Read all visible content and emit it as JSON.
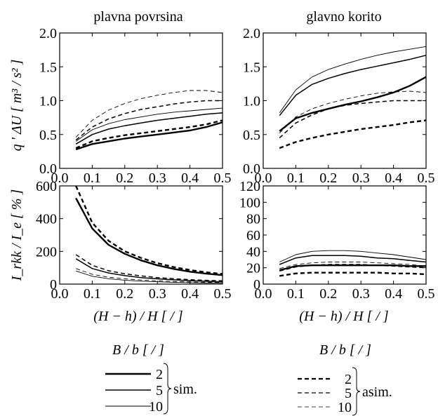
{
  "panel_titles": {
    "left": "plavna povrsina",
    "right": "glavno korito"
  },
  "axis_labels": {
    "y_top": "q ' ΔU  [ m³ / s² ]",
    "y_bottom": "I_rkk / I_e [ % ]",
    "x": "(H − h) / H  [ / ]"
  },
  "legend": {
    "sim": {
      "header": "B / b [ / ]",
      "values": [
        "2",
        "5",
        "10"
      ],
      "label": "sim."
    },
    "asim": {
      "header": "B / b [ / ]",
      "values": [
        "2",
        "5",
        "10"
      ],
      "label": "asim."
    }
  },
  "chart_data": [
    {
      "id": "top-left",
      "type": "line",
      "title": "plavna povrsina",
      "xlabel": "",
      "ylabel": "q ' ΔU [ m³ / s² ]",
      "xlim": [
        0.0,
        0.5
      ],
      "ylim": [
        0.0,
        2.0
      ],
      "xticks": [
        "0.0",
        "0.1",
        "0.2",
        "0.3",
        "0.4",
        "0.5"
      ],
      "yticks": [
        "0.0",
        "0.5",
        "1.0",
        "1.5",
        "2.0"
      ],
      "x": [
        0.05,
        0.1,
        0.15,
        0.2,
        0.25,
        0.3,
        0.35,
        0.4,
        0.45,
        0.5
      ],
      "series": [
        {
          "B_b": "2",
          "mode": "sim.",
          "values": [
            0.28,
            0.36,
            0.4,
            0.44,
            0.47,
            0.5,
            0.53,
            0.56,
            0.61,
            0.68
          ]
        },
        {
          "B_b": "5",
          "mode": "sim.",
          "values": [
            0.36,
            0.5,
            0.58,
            0.63,
            0.67,
            0.71,
            0.74,
            0.77,
            0.8,
            0.82
          ]
        },
        {
          "B_b": "10",
          "mode": "sim.",
          "values": [
            0.4,
            0.57,
            0.66,
            0.72,
            0.76,
            0.8,
            0.83,
            0.85,
            0.87,
            0.89
          ]
        },
        {
          "B_b": "2",
          "mode": "asim.",
          "values": [
            0.3,
            0.4,
            0.45,
            0.49,
            0.52,
            0.55,
            0.58,
            0.61,
            0.65,
            0.71
          ]
        },
        {
          "B_b": "5",
          "mode": "asim.",
          "values": [
            0.42,
            0.61,
            0.73,
            0.81,
            0.87,
            0.91,
            0.95,
            0.98,
            1.0,
            1.0
          ]
        },
        {
          "B_b": "10",
          "mode": "asim.",
          "values": [
            0.46,
            0.71,
            0.86,
            0.96,
            1.03,
            1.08,
            1.12,
            1.15,
            1.15,
            1.12
          ]
        }
      ]
    },
    {
      "id": "top-right",
      "type": "line",
      "title": "glavno korito",
      "xlabel": "",
      "ylabel": "",
      "xlim": [
        0.0,
        0.5
      ],
      "ylim": [
        0.0,
        2.0
      ],
      "xticks": [
        "0.0",
        "0.1",
        "0.2",
        "0.3",
        "0.4",
        "0.5"
      ],
      "yticks": [
        "0.0",
        "0.5",
        "1.0",
        "1.5",
        "2.0"
      ],
      "x": [
        0.05,
        0.1,
        0.15,
        0.2,
        0.25,
        0.3,
        0.35,
        0.4,
        0.45,
        0.5
      ],
      "series": [
        {
          "B_b": "2",
          "mode": "sim.",
          "values": [
            0.55,
            0.74,
            0.82,
            0.88,
            0.94,
            0.99,
            1.05,
            1.12,
            1.22,
            1.35
          ]
        },
        {
          "B_b": "5",
          "mode": "sim.",
          "values": [
            0.78,
            1.08,
            1.24,
            1.33,
            1.4,
            1.46,
            1.51,
            1.56,
            1.61,
            1.67
          ]
        },
        {
          "B_b": "10",
          "mode": "sim.",
          "values": [
            0.82,
            1.16,
            1.35,
            1.46,
            1.54,
            1.61,
            1.67,
            1.72,
            1.76,
            1.8
          ]
        },
        {
          "B_b": "2",
          "mode": "asim.",
          "values": [
            0.3,
            0.39,
            0.45,
            0.5,
            0.54,
            0.58,
            0.61,
            0.64,
            0.68,
            0.71
          ]
        },
        {
          "B_b": "5",
          "mode": "asim.",
          "values": [
            0.45,
            0.67,
            0.79,
            0.88,
            0.93,
            0.96,
            0.98,
            1.0,
            1.0,
            1.0
          ]
        },
        {
          "B_b": "10",
          "mode": "asim.",
          "values": [
            0.52,
            0.76,
            0.88,
            0.96,
            1.02,
            1.07,
            1.11,
            1.13,
            1.14,
            1.12
          ]
        }
      ]
    },
    {
      "id": "bottom-left",
      "type": "line",
      "title": "",
      "xlabel": "(H − h) / H [ / ]",
      "ylabel": "I_rkk / I_e [ % ]",
      "xlim": [
        0.0,
        0.5
      ],
      "ylim": [
        0,
        600
      ],
      "xticks": [
        "0.0",
        "0.1",
        "0.2",
        "0.3",
        "0.4",
        "0.5"
      ],
      "yticks": [
        "0",
        "200",
        "400",
        "600"
      ],
      "x": [
        0.05,
        0.1,
        0.15,
        0.2,
        0.25,
        0.3,
        0.35,
        0.4,
        0.45,
        0.5
      ],
      "series": [
        {
          "B_b": "2",
          "mode": "sim.",
          "values": [
            525,
            340,
            240,
            185,
            145,
            115,
            93,
            76,
            64,
            55
          ]
        },
        {
          "B_b": "5",
          "mode": "sim.",
          "values": [
            155,
            95,
            68,
            52,
            40,
            32,
            26,
            21,
            17,
            14
          ]
        },
        {
          "B_b": "10",
          "mode": "sim.",
          "values": [
            80,
            48,
            33,
            24,
            18,
            14,
            11,
            9,
            7,
            6
          ]
        },
        {
          "B_b": "2",
          "mode": "asim.",
          "values": [
            600,
            375,
            265,
            200,
            160,
            128,
            104,
            86,
            72,
            62
          ]
        },
        {
          "B_b": "5",
          "mode": "asim.",
          "values": [
            180,
            115,
            82,
            63,
            50,
            40,
            33,
            27,
            23,
            20
          ]
        },
        {
          "B_b": "10",
          "mode": "asim.",
          "values": [
            95,
            60,
            42,
            32,
            25,
            20,
            16,
            13,
            11,
            9
          ]
        }
      ]
    },
    {
      "id": "bottom-right",
      "type": "line",
      "title": "",
      "xlabel": "(H − h) / H [ / ]",
      "ylabel": "",
      "xlim": [
        0.0,
        0.5
      ],
      "ylim": [
        0,
        120
      ],
      "xticks": [
        "0.0",
        "0.1",
        "0.2",
        "0.3",
        "0.4",
        "0.5"
      ],
      "yticks": [
        "0",
        "20",
        "40",
        "60",
        "80",
        "100",
        "120"
      ],
      "x": [
        0.05,
        0.1,
        0.15,
        0.2,
        0.25,
        0.3,
        0.35,
        0.4,
        0.45,
        0.5
      ],
      "series": [
        {
          "B_b": "2",
          "mode": "sim.",
          "values": [
            17,
            22,
            23,
            23,
            23,
            23,
            23,
            23,
            22,
            22
          ]
        },
        {
          "B_b": "5",
          "mode": "sim.",
          "values": [
            24,
            32,
            35,
            35,
            35,
            34,
            32,
            31,
            29,
            27
          ]
        },
        {
          "B_b": "10",
          "mode": "sim.",
          "values": [
            27,
            36,
            40,
            41,
            41,
            40,
            38,
            36,
            33,
            30
          ]
        },
        {
          "B_b": "2",
          "mode": "asim.",
          "values": [
            10,
            13,
            14,
            14,
            14,
            14,
            14,
            13,
            13,
            12
          ]
        },
        {
          "B_b": "5",
          "mode": "asim.",
          "values": [
            16,
            21,
            23,
            24,
            24,
            24,
            23,
            22,
            21,
            20
          ]
        },
        {
          "B_b": "10",
          "mode": "asim.",
          "values": [
            19,
            24,
            26,
            27,
            27,
            27,
            26,
            25,
            24,
            22
          ]
        }
      ]
    }
  ]
}
